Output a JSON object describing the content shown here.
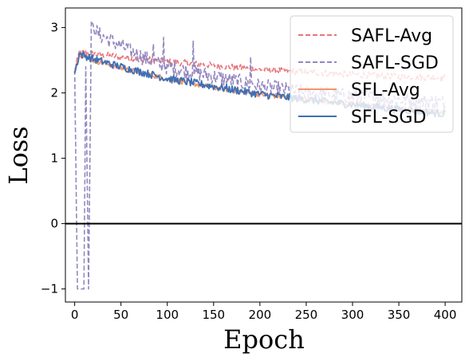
{
  "chart_data": {
    "type": "line",
    "xlabel": "Epoch",
    "ylabel": "Loss",
    "xlim": [
      -10,
      418
    ],
    "ylim": [
      -1.2,
      3.3
    ],
    "xticks": [
      0,
      50,
      100,
      150,
      200,
      250,
      300,
      350,
      400
    ],
    "yticks": [
      -1,
      0,
      1,
      2,
      3
    ],
    "hline": 0,
    "legend_position": "top-right",
    "series": [
      {
        "name": "SAFL-Avg",
        "color": "#e8747c",
        "dash": "dashed",
        "points": [
          [
            0,
            2.35
          ],
          [
            5,
            2.62
          ],
          [
            20,
            2.6
          ],
          [
            50,
            2.55
          ],
          [
            100,
            2.48
          ],
          [
            150,
            2.42
          ],
          [
            200,
            2.36
          ],
          [
            250,
            2.32
          ],
          [
            300,
            2.28
          ],
          [
            350,
            2.25
          ],
          [
            400,
            2.23
          ]
        ]
      },
      {
        "name": "SAFL-SGD",
        "color": "#9487c0",
        "dash": "dashed",
        "points": [
          [
            0,
            2.35
          ],
          [
            3,
            -1.0
          ],
          [
            10,
            -1.0
          ],
          [
            12,
            2.4
          ],
          [
            15,
            -1.0
          ],
          [
            18,
            3.1
          ],
          [
            25,
            2.9
          ],
          [
            50,
            2.72
          ],
          [
            80,
            2.5
          ],
          [
            100,
            2.4
          ],
          [
            150,
            2.25
          ],
          [
            200,
            2.1
          ],
          [
            250,
            2.0
          ],
          [
            300,
            1.95
          ],
          [
            350,
            1.9
          ],
          [
            400,
            1.85
          ]
        ],
        "spikes": [
          [
            18,
            3.1
          ],
          [
            85,
            2.75
          ],
          [
            96,
            2.85
          ],
          [
            128,
            2.8
          ],
          [
            190,
            2.55
          ]
        ]
      },
      {
        "name": "SFL-Avg",
        "color": "#f4956a",
        "dash": "solid",
        "points": [
          [
            0,
            2.35
          ],
          [
            5,
            2.6
          ],
          [
            20,
            2.5
          ],
          [
            50,
            2.38
          ],
          [
            100,
            2.22
          ],
          [
            150,
            2.08
          ],
          [
            200,
            1.98
          ],
          [
            250,
            1.9
          ],
          [
            300,
            1.83
          ],
          [
            350,
            1.76
          ],
          [
            400,
            1.7
          ]
        ]
      },
      {
        "name": "SFL-SGD",
        "color": "#3d6fb6",
        "dash": "solid",
        "points": [
          [
            0,
            2.3
          ],
          [
            5,
            2.6
          ],
          [
            20,
            2.52
          ],
          [
            50,
            2.4
          ],
          [
            100,
            2.22
          ],
          [
            150,
            2.1
          ],
          [
            200,
            1.98
          ],
          [
            250,
            1.9
          ],
          [
            300,
            1.82
          ],
          [
            350,
            1.75
          ],
          [
            400,
            1.68
          ]
        ]
      }
    ]
  }
}
